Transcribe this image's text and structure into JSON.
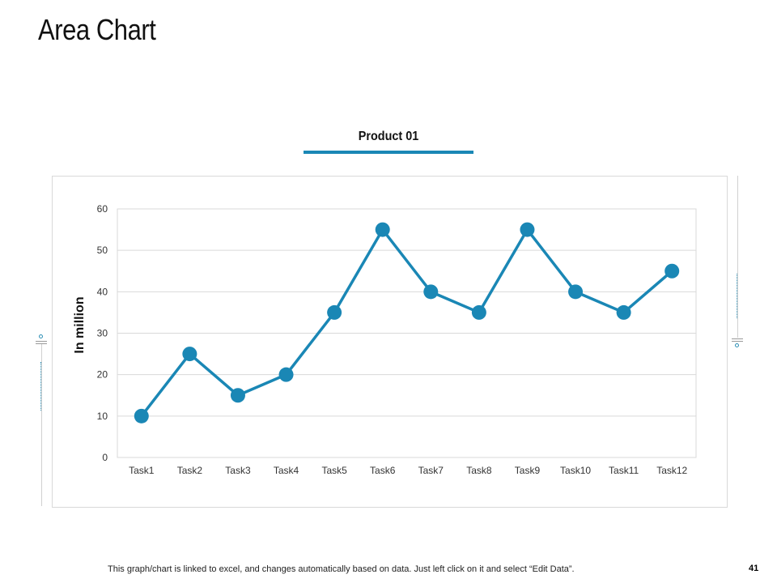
{
  "page": {
    "title": "Area Chart",
    "footer": "This graph/chart is linked to excel, and changes automatically based on data. Just left click on it and select “Edit Data”.",
    "page_number": "41"
  },
  "colors": {
    "accent": "#1A87B5",
    "gridline": "#d9d9d9",
    "text": "#333333"
  },
  "chart_data": {
    "type": "line",
    "title": "Product 01",
    "ylabel": "In million",
    "xlabel": "",
    "categories": [
      "Task1",
      "Task2",
      "Task3",
      "Task4",
      "Task5",
      "Task6",
      "Task7",
      "Task8",
      "Task9",
      "Task10",
      "Task11",
      "Task12"
    ],
    "series": [
      {
        "name": "Product 01",
        "values": [
          10,
          25,
          15,
          20,
          35,
          55,
          40,
          35,
          55,
          40,
          35,
          45
        ]
      }
    ],
    "ylim": [
      0,
      60
    ],
    "yticks": [
      0,
      10,
      20,
      30,
      40,
      50,
      60
    ],
    "grid": true,
    "markers": true
  }
}
